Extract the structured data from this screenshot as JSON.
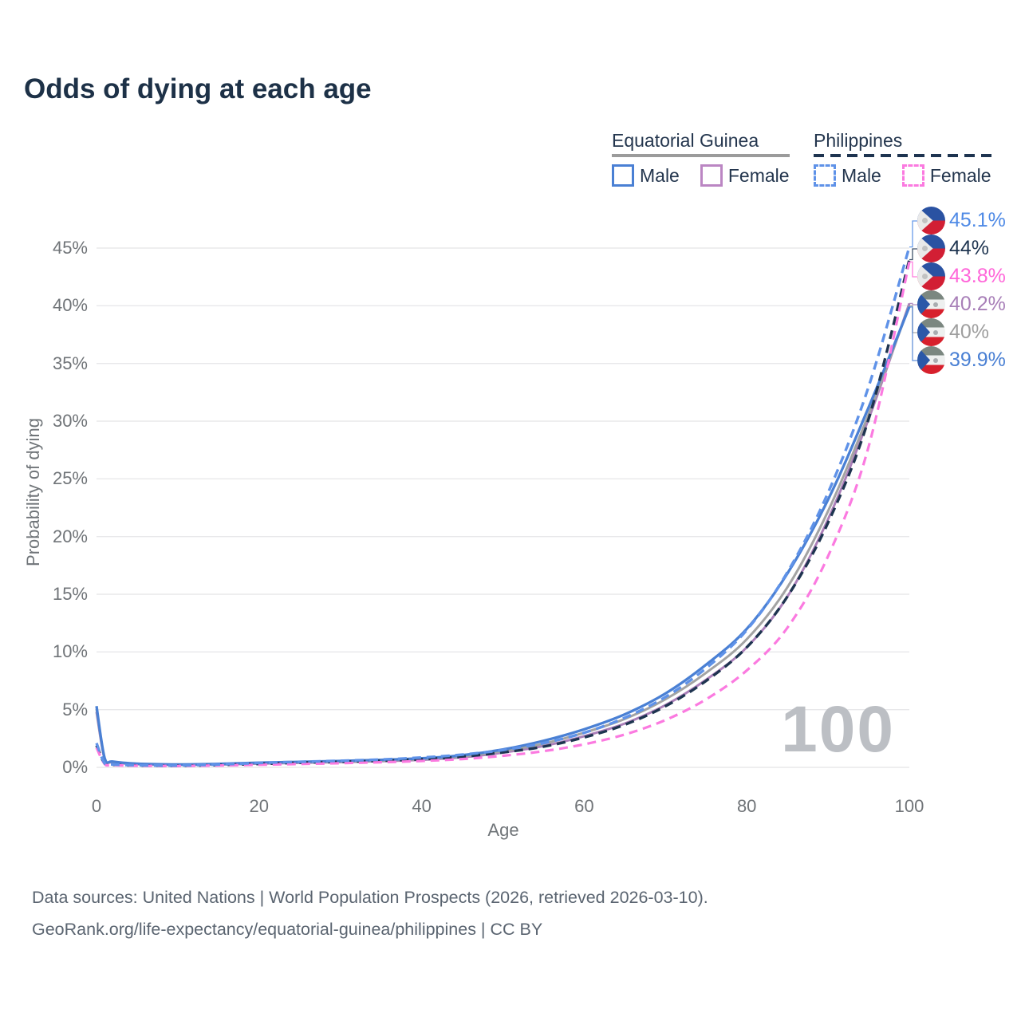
{
  "title": "Odds of dying at each age",
  "legend": {
    "groups": [
      {
        "name": "Equatorial Guinea",
        "line_style": "solid",
        "line_color": "#9b9b9b",
        "items": [
          {
            "label": "Male",
            "color": "#4a80d4",
            "dashed": false
          },
          {
            "label": "Female",
            "color": "#bb86c3",
            "dashed": false
          }
        ]
      },
      {
        "name": "Philippines",
        "line_style": "dashed",
        "line_color": "#1e3450",
        "items": [
          {
            "label": "Male",
            "color": "#5f92e8",
            "dashed": true
          },
          {
            "label": "Female",
            "color": "#fb7ae0",
            "dashed": true
          }
        ]
      }
    ]
  },
  "axes": {
    "x_label": "Age",
    "y_label": "Probability of dying",
    "x_ticks": [
      0,
      20,
      40,
      60,
      80,
      100
    ],
    "y_ticks": [
      "0%",
      "5%",
      "10%",
      "15%",
      "20%",
      "25%",
      "30%",
      "35%",
      "40%",
      "45%"
    ]
  },
  "watermark": "100",
  "chart_data": {
    "type": "line",
    "title": "Odds of dying at each age",
    "xlabel": "Age",
    "ylabel": "Probability of dying",
    "xlim": [
      0,
      100
    ],
    "ylim": [
      0,
      45
    ],
    "grid": "horizontal",
    "legend_position": "top-right",
    "x": [
      0,
      1,
      2,
      5,
      10,
      15,
      20,
      25,
      30,
      35,
      40,
      45,
      50,
      55,
      60,
      65,
      70,
      75,
      80,
      85,
      90,
      95,
      100
    ],
    "series": [
      {
        "name": "Equatorial Guinea — Female",
        "country": "Equatorial Guinea",
        "sex": "female",
        "color": "#ab7fb9",
        "dash": false,
        "width": 3,
        "values": [
          4.8,
          0.7,
          0.44,
          0.27,
          0.21,
          0.24,
          0.32,
          0.39,
          0.45,
          0.53,
          0.65,
          0.87,
          1.28,
          1.85,
          2.7,
          3.8,
          5.4,
          7.6,
          10.4,
          14.8,
          21.5,
          30.2,
          40.2
        ]
      },
      {
        "name": "Equatorial Guinea — Both sexes",
        "country": "Equatorial Guinea",
        "sex": "both",
        "color": "#a3a3a3",
        "dash": false,
        "width": 3,
        "values": [
          5.05,
          0.74,
          0.47,
          0.3,
          0.23,
          0.27,
          0.36,
          0.43,
          0.5,
          0.59,
          0.71,
          0.95,
          1.4,
          2.05,
          3.0,
          4.2,
          5.9,
          8.2,
          11.1,
          15.6,
          22.2,
          30.6,
          40.0
        ]
      },
      {
        "name": "Equatorial Guinea — Male",
        "country": "Equatorial Guinea",
        "sex": "male",
        "color": "#4a80d4",
        "dash": false,
        "width": 3.3,
        "values": [
          5.3,
          0.8,
          0.5,
          0.32,
          0.25,
          0.3,
          0.4,
          0.48,
          0.55,
          0.65,
          0.78,
          1.05,
          1.55,
          2.3,
          3.3,
          4.6,
          6.4,
          8.9,
          12.0,
          16.8,
          23.2,
          31.2,
          39.9
        ]
      },
      {
        "name": "Philippines — Both sexes",
        "country": "Philippines",
        "sex": "both",
        "color": "#1e3450",
        "dash": true,
        "width": 3.4,
        "values": [
          1.9,
          0.32,
          0.22,
          0.16,
          0.14,
          0.2,
          0.3,
          0.4,
          0.48,
          0.57,
          0.7,
          0.92,
          1.3,
          1.8,
          2.6,
          3.7,
          5.3,
          7.5,
          10.4,
          14.8,
          21.2,
          30.2,
          44.0
        ]
      },
      {
        "name": "Philippines — Female",
        "country": "Philippines",
        "sex": "female",
        "color": "#fb7ae0",
        "dash": true,
        "width": 3.2,
        "values": [
          1.7,
          0.3,
          0.2,
          0.14,
          0.12,
          0.16,
          0.22,
          0.29,
          0.36,
          0.44,
          0.55,
          0.72,
          1.0,
          1.4,
          2.0,
          2.85,
          4.1,
          5.9,
          8.4,
          12.1,
          18.3,
          27.8,
          43.8
        ]
      },
      {
        "name": "Philippines — Male",
        "country": "Philippines",
        "sex": "male",
        "color": "#5f92e8",
        "dash": true,
        "width": 3.4,
        "values": [
          2.1,
          0.35,
          0.25,
          0.18,
          0.16,
          0.25,
          0.38,
          0.48,
          0.57,
          0.68,
          0.85,
          1.1,
          1.5,
          2.1,
          3.0,
          4.3,
          6.1,
          8.6,
          11.9,
          16.9,
          23.8,
          33.0,
          45.1
        ]
      }
    ]
  },
  "end_labels": [
    {
      "text": "45.1%",
      "color": "#4f8ae6",
      "flag": "philippines",
      "series": "Philippines — Male"
    },
    {
      "text": "44%",
      "color": "#1e3450",
      "flag": "philippines",
      "series": "Philippines — Both sexes"
    },
    {
      "text": "43.8%",
      "color": "#ff66d9",
      "flag": "philippines",
      "series": "Philippines — Female"
    },
    {
      "text": "40.2%",
      "color": "#a87fb8",
      "flag": "equatorial-guinea",
      "series": "Equatorial Guinea — Female"
    },
    {
      "text": "40%",
      "color": "#9e9e9e",
      "flag": "equatorial-guinea",
      "series": "Equatorial Guinea — Both sexes"
    },
    {
      "text": "39.9%",
      "color": "#4a80d4",
      "flag": "equatorial-guinea",
      "series": "Equatorial Guinea — Male"
    }
  ],
  "footer": {
    "line1": "Data sources: United Nations | World Population Prospects (2026, retrieved 2026-03-10).",
    "line2": "GeoRank.org/life-expectancy/equatorial-guinea/philippines | CC BY"
  }
}
